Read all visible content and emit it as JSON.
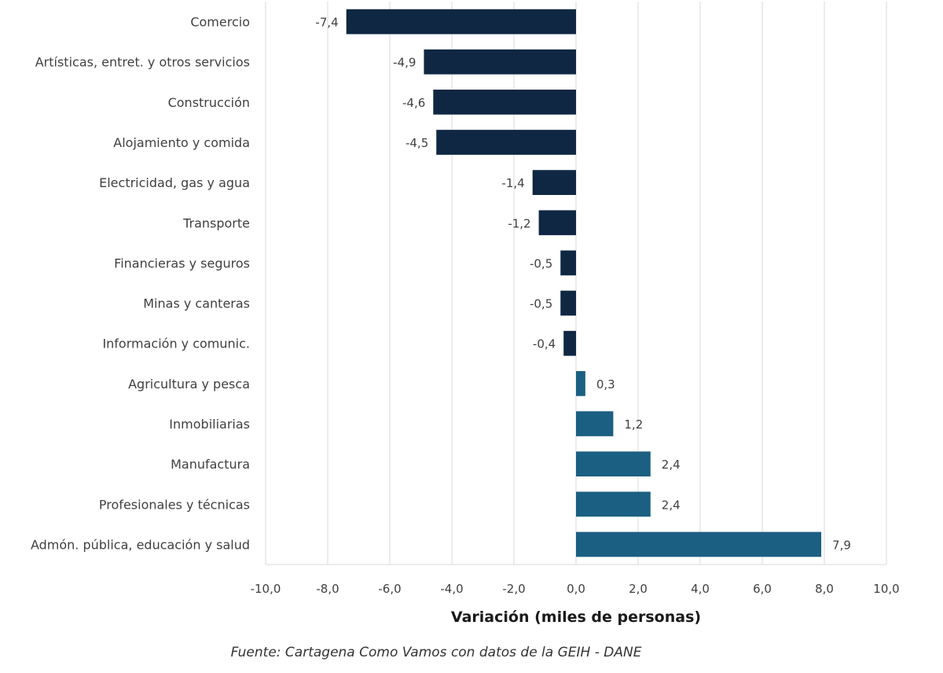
{
  "chart_data": {
    "type": "bar",
    "orientation": "horizontal",
    "categories": [
      "Comercio",
      "Artísticas, entret. y otros servicios",
      "Construcción",
      "Alojamiento y comida",
      "Electricidad, gas y agua",
      "Transporte",
      "Financieras y seguros",
      "Minas y canteras",
      "Información y comunic.",
      "Agricultura y pesca",
      "Inmobiliarias",
      "Manufactura",
      "Profesionales y técnicas",
      "Admón. pública, educación y salud"
    ],
    "values": [
      -7.4,
      -4.9,
      -4.6,
      -4.5,
      -1.4,
      -1.2,
      -0.5,
      -0.5,
      -0.4,
      0.3,
      1.2,
      2.4,
      2.4,
      7.9
    ],
    "data_labels": [
      "-7,4",
      "-4,9",
      "-4,6",
      "-4,5",
      "-1,4",
      "-1,2",
      "-0,5",
      "-0,5",
      "-0,4",
      "0,3",
      "1,2",
      "2,4",
      "2,4",
      "7,9"
    ],
    "xlabel": "Variación (miles de personas)",
    "ylabel": "",
    "xlim": [
      -10,
      10
    ],
    "x_ticks": [
      -10,
      -8,
      -6,
      -4,
      -2,
      0,
      2,
      4,
      6,
      8,
      10
    ],
    "x_tick_labels": [
      "-10,0",
      "-8,0",
      "-6,0",
      "-4,0",
      "-2,0",
      "0,0",
      "2,0",
      "4,0",
      "6,0",
      "8,0",
      "10,0"
    ],
    "grid": "vertical",
    "colors": {
      "negative": "#0f2742",
      "positive": "#1b5f82",
      "grid": "#d9d9d9"
    }
  },
  "source": "Fuente: Cartagena Como Vamos con datos de la GEIH - DANE"
}
